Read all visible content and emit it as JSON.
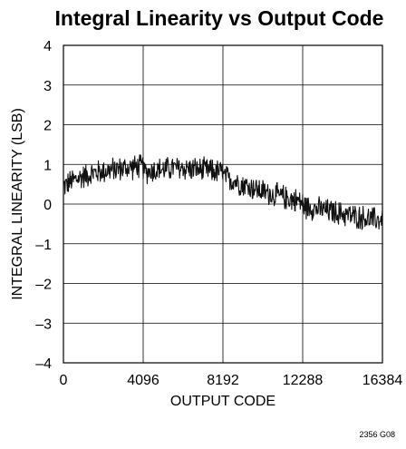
{
  "chart_data": {
    "type": "line",
    "title": "Integral Linearity vs Output Code",
    "xlabel": "OUTPUT CODE",
    "ylabel": "INTEGRAL LINEARITY (LSB)",
    "xlim": [
      0,
      16384
    ],
    "ylim": [
      -4,
      4
    ],
    "x_ticks": [
      0,
      4096,
      8192,
      12288,
      16384
    ],
    "x_tick_labels": [
      "0",
      "4096",
      "8192",
      "12288",
      "16384"
    ],
    "y_ticks": [
      4,
      3,
      2,
      1,
      0,
      -1,
      -2,
      -3,
      -4
    ],
    "y_tick_labels": [
      "4",
      "3",
      "2",
      "1",
      "0",
      "–1",
      "–2",
      "–3",
      "–4"
    ],
    "grid": true,
    "series": [
      {
        "x": [
          0,
          512,
          1024,
          1536,
          2048,
          2560,
          3072,
          3584,
          4096,
          4096,
          4608,
          5120,
          5632,
          6144,
          6656,
          7168,
          7680,
          8192,
          8192,
          8704,
          9216,
          9728,
          10240,
          10752,
          11264,
          11776,
          12288,
          12288,
          12800,
          13312,
          13824,
          14336,
          14848,
          15360,
          15872,
          16384
        ],
        "y": [
          0.45,
          0.6,
          0.7,
          0.78,
          0.83,
          0.87,
          0.9,
          0.93,
          0.95,
          0.8,
          0.85,
          0.88,
          0.9,
          0.9,
          0.88,
          0.86,
          0.83,
          0.8,
          0.7,
          0.6,
          0.5,
          0.4,
          0.32,
          0.25,
          0.18,
          0.12,
          0.05,
          -0.05,
          -0.1,
          -0.15,
          -0.2,
          -0.25,
          -0.3,
          -0.34,
          -0.38,
          -0.4
        ],
        "band": 0.35,
        "color": "#111111"
      }
    ]
  },
  "figure_id": "2356 G08"
}
